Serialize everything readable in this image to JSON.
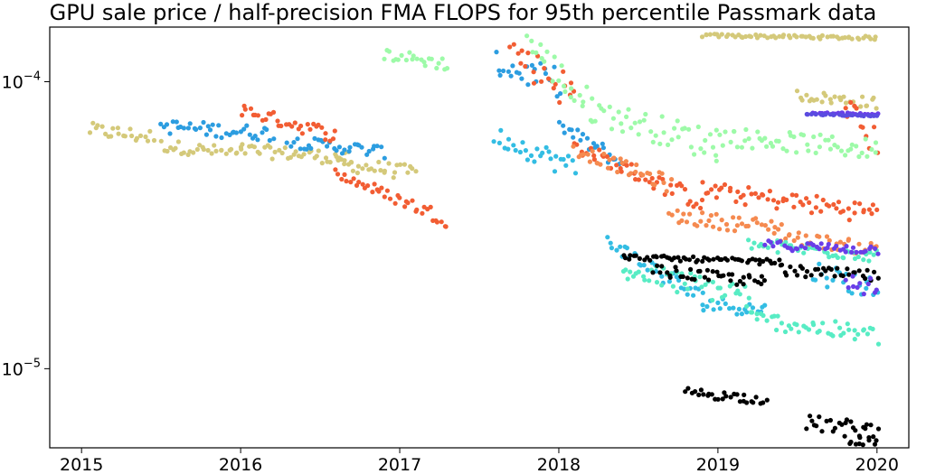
{
  "chart_data": {
    "type": "scatter",
    "title": "GPU sale price / half-precision FMA FLOPS for 95th percentile Passmark data",
    "xlabel": "",
    "ylabel": "",
    "y_scale": "log",
    "xlim": [
      2014.8,
      2020.2
    ],
    "ylim": [
      5.3e-06,
      0.000155
    ],
    "x_ticks": [
      {
        "value": 2015,
        "label": "2015"
      },
      {
        "value": 2016,
        "label": "2016"
      },
      {
        "value": 2017,
        "label": "2017"
      },
      {
        "value": 2018,
        "label": "2018"
      },
      {
        "value": 2019,
        "label": "2019"
      },
      {
        "value": 2020,
        "label": "2020"
      }
    ],
    "y_ticks": [
      {
        "value": 0.0001,
        "base": "10",
        "exp": "−4"
      },
      {
        "value": 1e-05,
        "base": "10",
        "exp": "−5"
      }
    ],
    "grid": false,
    "legend": "none",
    "series": [
      {
        "color": "#d4c97a",
        "segments": [
          [
            2015.05,
            2015.45,
            6.8e-05,
            6.4e-05,
            4e-06
          ],
          [
            2015.5,
            2016.0,
            6e-05,
            5.6e-05,
            3e-06
          ],
          [
            2016.0,
            2016.7,
            5.8e-05,
            5.4e-05,
            3e-06
          ],
          [
            2016.6,
            2017.1,
            5.2e-05,
            4.8e-05,
            3e-06
          ],
          [
            2018.9,
            2020.0,
            0.000145,
            0.000142,
            2e-06
          ],
          [
            2019.5,
            2020.0,
            9e-05,
            8.4e-05,
            4e-06
          ]
        ]
      },
      {
        "color": "#2c9de0",
        "segments": [
          [
            2015.5,
            2016.2,
            7e-05,
            6.6e-05,
            4e-06
          ],
          [
            2016.3,
            2016.9,
            6.2e-05,
            5.7e-05,
            3e-06
          ],
          [
            2017.6,
            2018.0,
            0.000115,
            0.0001,
            1.2e-05
          ],
          [
            2018.0,
            2018.4,
            7e-05,
            5.2e-05,
            4e-06
          ]
        ]
      },
      {
        "color": "#f25d33",
        "segments": [
          [
            2016.0,
            2016.6,
            8e-05,
            6.5e-05,
            4e-06
          ],
          [
            2016.6,
            2017.3,
            4.8e-05,
            3.3e-05,
            2e-06
          ],
          [
            2017.7,
            2018.1,
            0.00013,
            9e-05,
            1.5e-05
          ],
          [
            2018.1,
            2018.9,
            6e-05,
            3.8e-05,
            3e-06
          ],
          [
            2018.9,
            2020.0,
            4.2e-05,
            3.5e-05,
            3e-06
          ],
          [
            2019.8,
            2020.0,
            8.5e-05,
            6e-05,
            8e-06
          ]
        ]
      },
      {
        "color": "#9dfaa8",
        "segments": [
          [
            2016.9,
            2017.3,
            0.000125,
            0.000115,
            6e-06
          ],
          [
            2017.8,
            2018.2,
            0.00014,
            8e-05,
            1.5e-05
          ],
          [
            2018.2,
            2019.0,
            8e-05,
            6e-05,
            8e-06
          ],
          [
            2019.0,
            2020.0,
            6.5e-05,
            5.8e-05,
            5e-06
          ]
        ]
      },
      {
        "color": "#33bde3",
        "segments": [
          [
            2017.6,
            2018.1,
            6.5e-05,
            5e-05,
            5e-06
          ],
          [
            2018.3,
            2018.9,
            2.8e-05,
            1.75e-05,
            1.5e-06
          ],
          [
            2018.9,
            2019.3,
            1.7e-05,
            1.6e-05,
            1e-06
          ],
          [
            2019.6,
            2020.0,
            2.2e-05,
            1.9e-05,
            2e-06
          ]
        ]
      },
      {
        "color": "#f58a50",
        "segments": [
          [
            2018.1,
            2018.7,
            5.8e-05,
            4.4e-05,
            3e-06
          ],
          [
            2018.7,
            2019.4,
            3.4e-05,
            3.1e-05,
            2e-06
          ],
          [
            2019.4,
            2020.0,
            2.9e-05,
            2.6e-05,
            1.5e-06
          ]
        ]
      },
      {
        "color": "#58ecc4",
        "segments": [
          [
            2018.4,
            2019.2,
            2.2e-05,
            1.8e-05,
            2e-06
          ],
          [
            2019.2,
            2020.0,
            1.5e-05,
            1.3e-05,
            1e-06
          ],
          [
            2019.2,
            2020.0,
            2.7e-05,
            2.5e-05,
            1.5e-06
          ]
        ]
      },
      {
        "color": "#000000",
        "segments": [
          [
            2018.4,
            2019.4,
            2.45e-05,
            2.35e-05,
            5e-07
          ],
          [
            2018.6,
            2019.3,
            2.2e-05,
            2e-05,
            1e-06
          ],
          [
            2018.8,
            2019.3,
            8.3e-06,
            7.8e-06,
            3e-07
          ],
          [
            2019.55,
            2020.0,
            6.5e-06,
            6.1e-06,
            4e-07
          ],
          [
            2019.8,
            2020.0,
            5.7e-06,
            5.5e-06,
            2e-07
          ],
          [
            2019.4,
            2020.0,
            2.2e-05,
            2.1e-05,
            1e-06
          ]
        ]
      },
      {
        "color": "#6a3de8",
        "segments": [
          [
            2019.3,
            2020.0,
            2.7e-05,
            2.6e-05,
            1e-06
          ],
          [
            2019.6,
            2020.0,
            7.8e-05,
            7.7e-05,
            5e-07
          ],
          [
            2019.8,
            2020.0,
            2e-05,
            1.9e-05,
            1.5e-06
          ]
        ]
      },
      {
        "color": "#5b4ce0",
        "segments": [
          [
            2019.55,
            2020.0,
            7.7e-05,
            7.6e-05,
            3e-07
          ]
        ]
      }
    ]
  }
}
